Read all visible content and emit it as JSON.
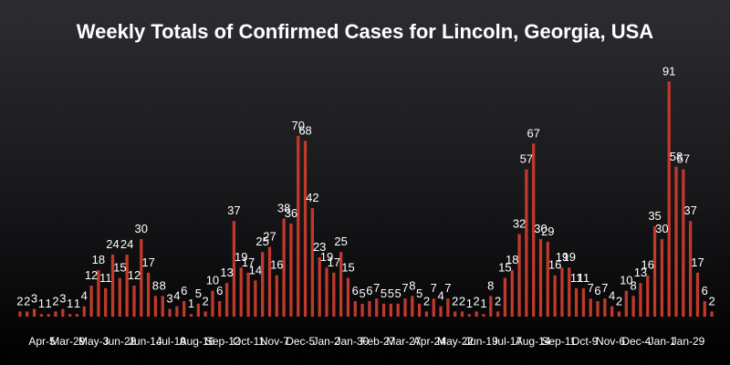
{
  "chart_data": {
    "type": "bar",
    "title": "Weekly Totals of Confirmed Cases for Lincoln, Georgia, USA",
    "xlabel": "",
    "ylabel": "",
    "ylim": [
      0,
      95
    ],
    "bar_color": "#c0392b",
    "label_color": "#ffffff",
    "x_tick_labels": [
      "Apr-5",
      "Mar-29",
      "May-3",
      "Jun-28",
      "Jun-14",
      "Jul-19",
      "Aug-16",
      "Sep-12",
      "Oct-11",
      "Nov-7",
      "Dec-5",
      "Jan-2",
      "Jan-30",
      "Feb-27",
      "Mar-27",
      "Apr-24",
      "May-22",
      "Jun-19",
      "Jul-17",
      "Aug-14",
      "Sep-11",
      "Oct-9",
      "Nov-6",
      "Dec-4",
      "Jan-1",
      "Jan-29"
    ],
    "values": [
      2,
      2,
      3,
      1,
      1,
      2,
      3,
      1,
      1,
      4,
      12,
      18,
      11,
      24,
      15,
      24,
      12,
      30,
      17,
      8,
      8,
      3,
      4,
      6,
      1,
      5,
      2,
      10,
      6,
      13,
      37,
      19,
      17,
      14,
      25,
      27,
      16,
      38,
      36,
      70,
      68,
      42,
      23,
      19,
      17,
      25,
      15,
      6,
      5,
      6,
      7,
      5,
      5,
      5,
      7,
      8,
      5,
      2,
      7,
      4,
      7,
      2,
      2,
      1,
      2,
      1,
      8,
      2,
      15,
      18,
      32,
      57,
      67,
      30,
      29,
      16,
      19,
      19,
      11,
      11,
      7,
      6,
      7,
      4,
      2,
      10,
      8,
      13,
      16,
      35,
      30,
      91,
      58,
      57,
      37,
      17,
      6,
      2
    ]
  }
}
